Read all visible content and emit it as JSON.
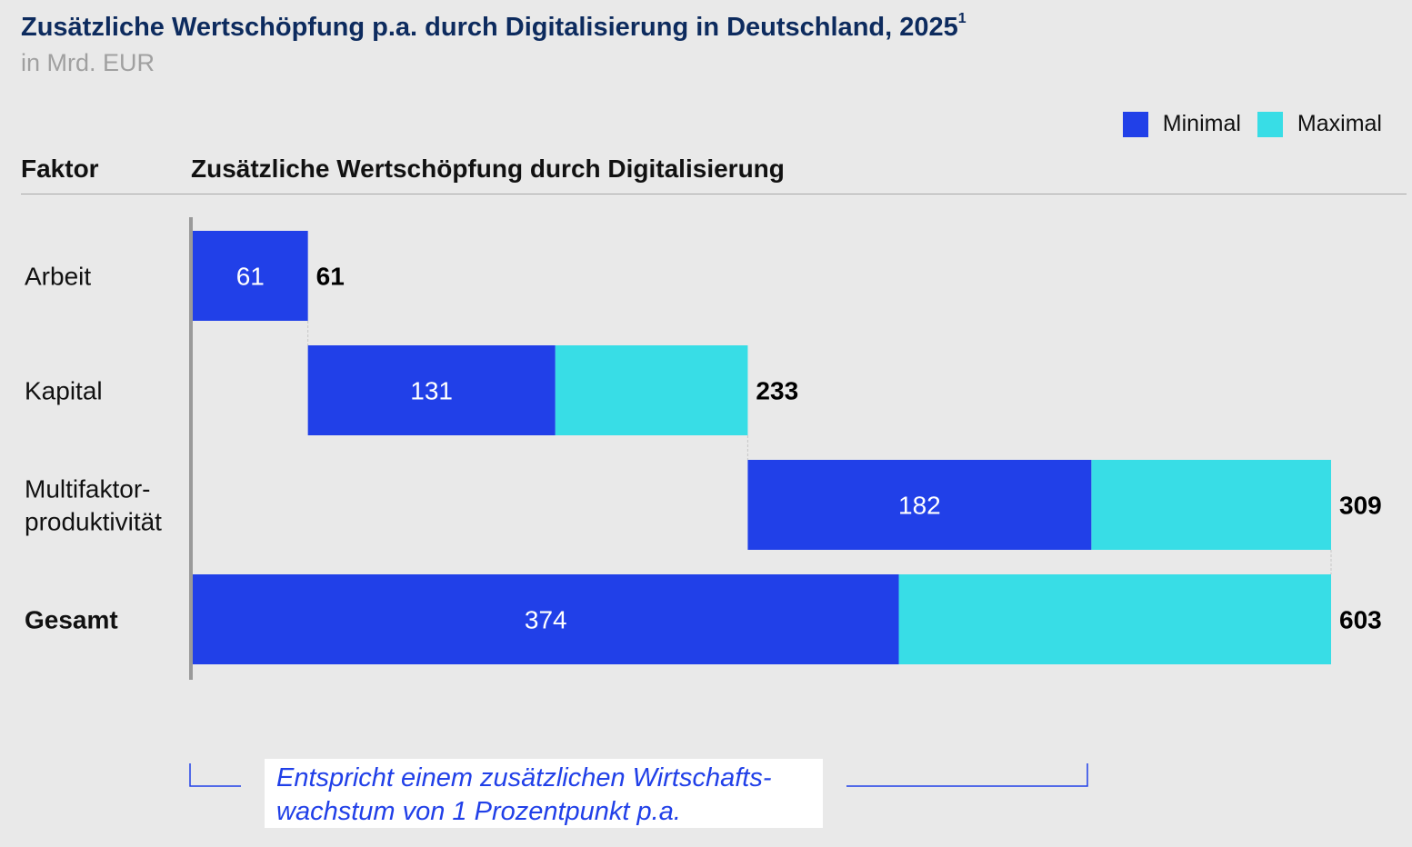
{
  "title": "Zusätzliche Wertschöpfung p.a. durch Digitalisierung in Deutschland, 2025",
  "title_footnote": "1",
  "subtitle": "in Mrd. EUR",
  "column_headers": {
    "factor": "Faktor",
    "value": "Zusätzliche Wertschöpfung durch Digitalisierung"
  },
  "colors": {
    "minimal": "#2140E8",
    "maximal": "#38DDE6",
    "background": "#E9E9E9"
  },
  "chart_data": {
    "type": "bar",
    "subtype": "waterfall-horizontal-stacked",
    "categories": [
      "Arbeit",
      "Kapital",
      "Multifaktor-\nproduktivität",
      "Gesamt"
    ],
    "series": [
      {
        "name": "Minimal",
        "values": [
          61,
          131,
          182,
          374
        ]
      },
      {
        "name": "Maximal",
        "values": [
          61,
          233,
          309,
          603
        ]
      }
    ],
    "inner_labels": [
      "61",
      "131",
      "182",
      "374"
    ],
    "end_labels": [
      "61",
      "233",
      "309",
      "603"
    ],
    "legend": {
      "position": "top-right",
      "entries": [
        "Minimal",
        "Maximal"
      ]
    },
    "xlim": [
      0,
      603
    ],
    "grid": false
  },
  "annotation": "Entspricht einem zusätzlichen Wirtschafts-\nwachstum von 1 Prozentpunkt p.a."
}
